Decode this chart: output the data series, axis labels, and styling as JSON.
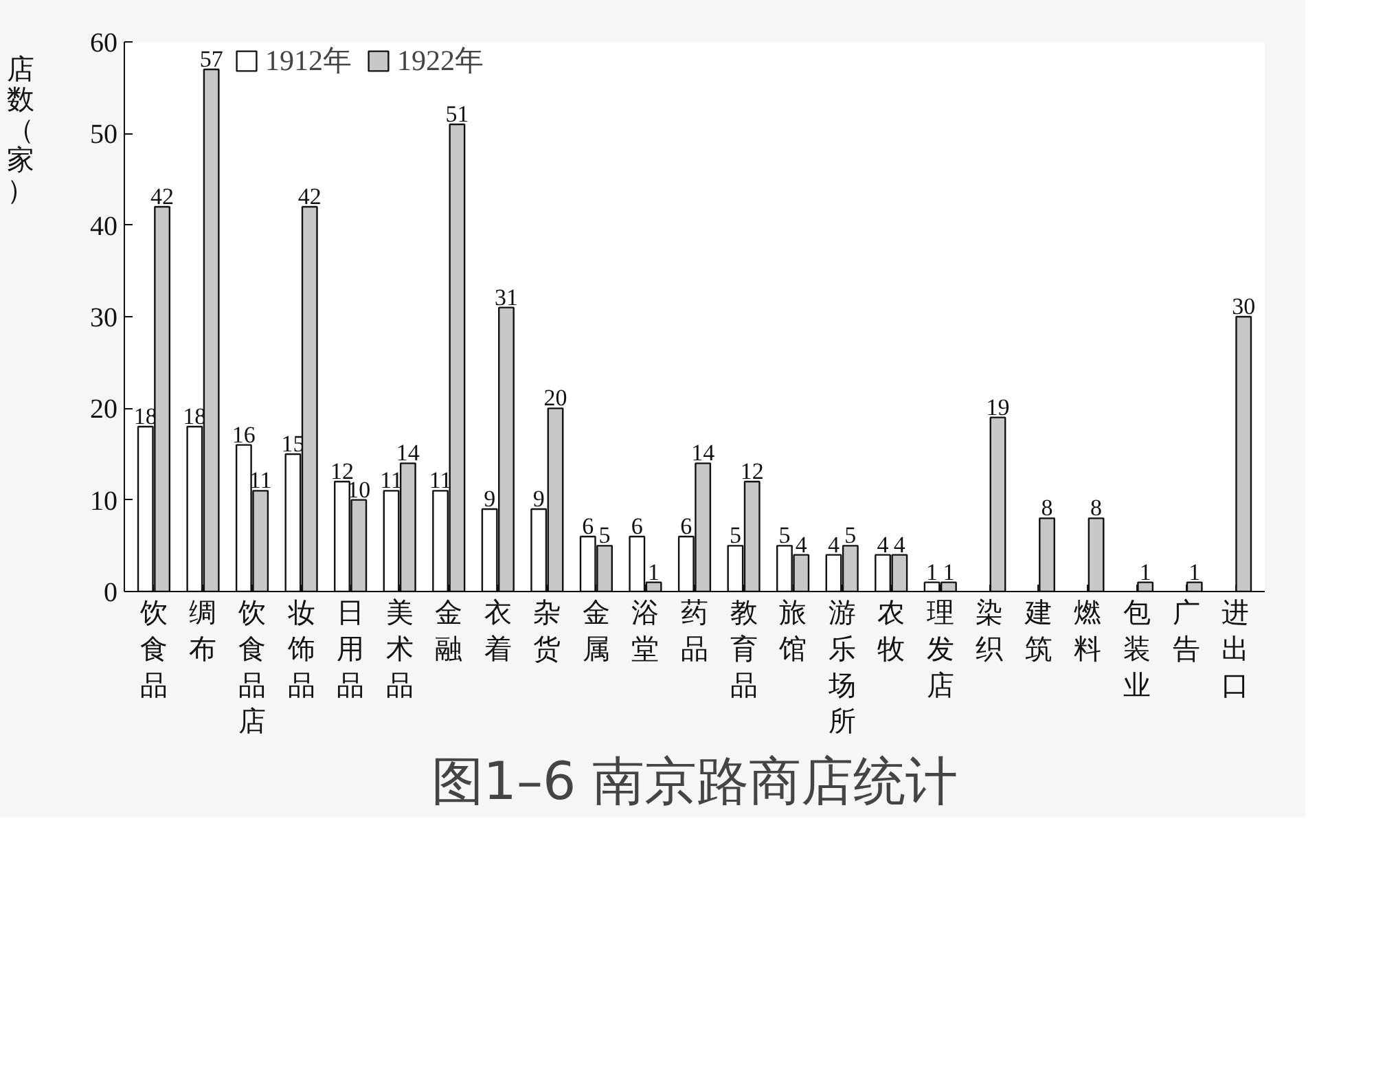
{
  "chart_data": {
    "type": "bar",
    "title": "图1–6 南京路商店统计",
    "ylabel": "店数（家）",
    "categories": [
      "饮食品",
      "绸布",
      "饮食品店",
      "妆饰品",
      "日用品",
      "美术品",
      "金融",
      "衣着",
      "杂货",
      "金属",
      "浴堂",
      "药品",
      "教育品",
      "旅馆",
      "游乐场所",
      "农牧",
      "理发店",
      "染织",
      "建筑",
      "燃料",
      "包装业",
      "广告",
      "进出口"
    ],
    "series": [
      {
        "name": "1912年",
        "color": "#ffffff",
        "values": [
          18,
          18,
          16,
          15,
          12,
          11,
          11,
          9,
          9,
          6,
          6,
          6,
          5,
          5,
          4,
          4,
          1,
          null,
          null,
          null,
          null,
          null,
          null
        ]
      },
      {
        "name": "1922年",
        "color": "#c8c8c8",
        "values": [
          42,
          57,
          11,
          42,
          10,
          14,
          51,
          31,
          20,
          5,
          1,
          14,
          12,
          4,
          5,
          4,
          1,
          19,
          8,
          8,
          1,
          1,
          30
        ]
      }
    ],
    "ylim": [
      0,
      60
    ],
    "yticks": [
      0,
      10,
      20,
      30,
      40,
      50,
      60
    ],
    "grid": false,
    "legend": "top left",
    "data_labels": true
  }
}
